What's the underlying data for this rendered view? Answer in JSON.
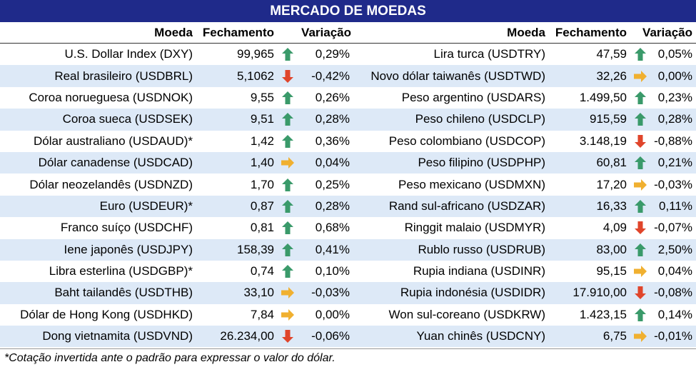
{
  "title": "MERCADO DE MOEDAS",
  "headers": {
    "moeda": "Moeda",
    "fechamento": "Fechamento",
    "variacao": "Variação"
  },
  "icon_colors": {
    "up": "#3a9a6a",
    "down": "#e0452b",
    "flat": "#f0b030"
  },
  "title_bg": "#1f2a8a",
  "alt_row_bg": "#dde9f7",
  "left": [
    {
      "name": "U.S. Dollar Index (DXY)",
      "close": "99,965",
      "trend": "up",
      "var": "0,29%"
    },
    {
      "name": "Real brasileiro (USDBRL)",
      "close": "5,1062",
      "trend": "down",
      "var": "-0,42%"
    },
    {
      "name": "Coroa norueguesa (USDNOK)",
      "close": "9,55",
      "trend": "up",
      "var": "0,26%"
    },
    {
      "name": "Coroa sueca (USDSEK)",
      "close": "9,51",
      "trend": "up",
      "var": "0,28%"
    },
    {
      "name": "Dólar australiano (USDAUD)*",
      "close": "1,42",
      "trend": "up",
      "var": "0,36%"
    },
    {
      "name": "Dólar canadense (USDCAD)",
      "close": "1,40",
      "trend": "flat",
      "var": "0,04%"
    },
    {
      "name": "Dólar neozelandês (USDNZD)",
      "close": "1,70",
      "trend": "up",
      "var": "0,25%"
    },
    {
      "name": "Euro (USDEUR)*",
      "close": "0,87",
      "trend": "up",
      "var": "0,28%"
    },
    {
      "name": "Franco suíço (USDCHF)",
      "close": "0,81",
      "trend": "up",
      "var": "0,68%"
    },
    {
      "name": "Iene japonês (USDJPY)",
      "close": "158,39",
      "trend": "up",
      "var": "0,41%"
    },
    {
      "name": "Libra esterlina (USDGBP)*",
      "close": "0,74",
      "trend": "up",
      "var": "0,10%"
    },
    {
      "name": "Baht tailandês (USDTHB)",
      "close": "33,10",
      "trend": "flat",
      "var": "-0,03%"
    },
    {
      "name": "Dólar de Hong Kong (USDHKD)",
      "close": "7,84",
      "trend": "flat",
      "var": "0,00%"
    },
    {
      "name": "Dong vietnamita (USDVND)",
      "close": "26.234,00",
      "trend": "down",
      "var": "-0,06%"
    }
  ],
  "right": [
    {
      "name": "Lira turca (USDTRY)",
      "close": "47,59",
      "trend": "up",
      "var": "0,05%"
    },
    {
      "name": "Novo dólar taiwanês (USDTWD)",
      "close": "32,26",
      "trend": "flat",
      "var": "0,00%"
    },
    {
      "name": "Peso argentino (USDARS)",
      "close": "1.499,50",
      "trend": "up",
      "var": "0,23%"
    },
    {
      "name": "Peso chileno (USDCLP)",
      "close": "915,59",
      "trend": "up",
      "var": "0,28%"
    },
    {
      "name": "Peso colombiano (USDCOP)",
      "close": "3.148,19",
      "trend": "down",
      "var": "-0,88%"
    },
    {
      "name": "Peso filipino (USDPHP)",
      "close": "60,81",
      "trend": "up",
      "var": "0,21%"
    },
    {
      "name": "Peso mexicano (USDMXN)",
      "close": "17,20",
      "trend": "flat",
      "var": "-0,03%"
    },
    {
      "name": "Rand sul-africano (USDZAR)",
      "close": "16,33",
      "trend": "up",
      "var": "0,11%"
    },
    {
      "name": "Ringgit malaio (USDMYR)",
      "close": "4,09",
      "trend": "down",
      "var": "-0,07%"
    },
    {
      "name": "Rublo russo (USDRUB)",
      "close": "83,00",
      "trend": "up",
      "var": "2,50%"
    },
    {
      "name": "Rupia indiana (USDINR)",
      "close": "95,15",
      "trend": "flat",
      "var": "0,04%"
    },
    {
      "name": "Rupia indonésia (USDIDR)",
      "close": "17.910,00",
      "trend": "down",
      "var": "-0,08%"
    },
    {
      "name": "Won sul-coreano (USDKRW)",
      "close": "1.423,15",
      "trend": "up",
      "var": "0,14%"
    },
    {
      "name": "Yuan chinês (USDCNY)",
      "close": "6,75",
      "trend": "flat",
      "var": "-0,01%"
    }
  ],
  "footnote": "*Cotação invertida ante o padrão para expressar o valor do dólar."
}
